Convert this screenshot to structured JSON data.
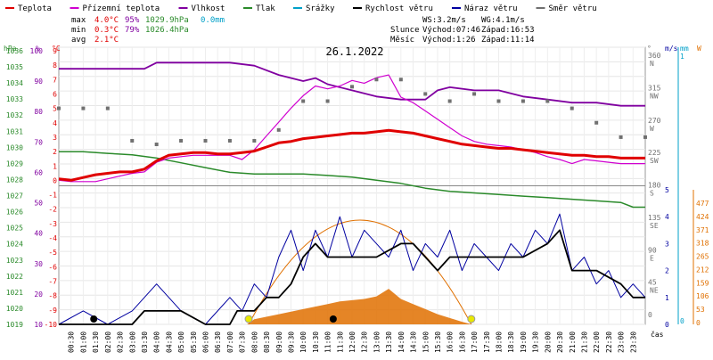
{
  "legend": [
    {
      "label": "Teplota",
      "color": "#e00000"
    },
    {
      "label": "Přízemní teplota",
      "color": "#d000d0"
    },
    {
      "label": "Vlhkost",
      "color": "#8000a0"
    },
    {
      "label": "Tlak",
      "color": "#2a8a2a"
    },
    {
      "label": "Srážky",
      "color": "#00a0c8"
    },
    {
      "label": "Rychlost větru",
      "color": "#000000"
    },
    {
      "label": "Náraz větru",
      "color": "#0000a0"
    },
    {
      "label": "Směr větru",
      "color": "#707070"
    }
  ],
  "stats": {
    "max": {
      "label": "max",
      "temp": "4.0°C",
      "hum": "95%",
      "press": "1029.9hPa",
      "rain": "0.0mm"
    },
    "min": {
      "label": "min",
      "temp": "0.3°C",
      "hum": "79%",
      "press": "1026.4hPa"
    },
    "avg": {
      "label": "avg",
      "temp": "2.1°C"
    }
  },
  "wind_info": {
    "ws": "WS:3.2m/s",
    "wg": "WG:4.1m/s"
  },
  "sun": {
    "label": "Slunce",
    "rise": "Východ:07:46",
    "set": "Západ:16:53"
  },
  "moon": {
    "label": "Měsíc",
    "rise": "Východ:1:26",
    "set": "Západ:11:14"
  },
  "title": "26.1.2022",
  "colors": {
    "temperature": "#e00000",
    "ground_temp": "#d000d0",
    "humidity": "#8000a0",
    "pressure": "#2a8a2a",
    "rain": "#00a0c8",
    "wind_speed": "#000000",
    "wind_gust": "#0000a0",
    "wind_dir": "#707070",
    "radiation": "#e07000",
    "sun_marker": "#e8e800",
    "moon_marker": "#000000"
  },
  "axes": {
    "hpa_title": "hPa",
    "percent_title": "%",
    "celsius_title": "°C",
    "hpa_ticks": [
      "1036",
      "1035",
      "1034",
      "1033",
      "1032",
      "1031",
      "1030",
      "1029",
      "1028",
      "1027",
      "1026",
      "1025",
      "1024",
      "1023",
      "1022",
      "1021",
      "1020",
      "1019"
    ],
    "percent_ticks": [
      "100",
      "90",
      "80",
      "70",
      "60",
      "50",
      "40",
      "30",
      "20",
      "10"
    ],
    "celsius_ticks": [
      "9",
      "8",
      "7",
      "6",
      "5",
      "4",
      "3",
      "2",
      "1",
      "0",
      "-1",
      "-2",
      "-3",
      "-4",
      "-5",
      "-6",
      "-7",
      "-8",
      "-9",
      "-10"
    ],
    "dir_title": "°",
    "dir_ticks": [
      "360 N",
      "315 NW",
      "270 W",
      "225 SW",
      "180 S",
      "135 SE",
      "90 E",
      "45 NE",
      "0"
    ],
    "wind_title": "m/s",
    "wind_ticks": [
      "5",
      "4",
      "3",
      "2",
      "1",
      "0"
    ],
    "rain_title": "mm",
    "rain_ticks": [
      "1",
      "0"
    ],
    "rad_title": "W",
    "rad_ticks": [
      "477",
      "424",
      "371",
      "318",
      "265",
      "212",
      "159",
      "106",
      "53",
      "0"
    ],
    "time_title": "čas",
    "time_ticks": [
      "00:30",
      "01:00",
      "01:30",
      "02:00",
      "02:30",
      "03:00",
      "03:30",
      "04:00",
      "04:30",
      "05:00",
      "05:30",
      "06:00",
      "06:30",
      "07:00",
      "07:30",
      "08:00",
      "08:30",
      "09:00",
      "09:30",
      "10:00",
      "10:30",
      "11:00",
      "11:30",
      "12:00",
      "12:30",
      "13:00",
      "13:30",
      "14:00",
      "14:30",
      "15:00",
      "15:30",
      "16:00",
      "16:30",
      "17:00",
      "17:30",
      "18:00",
      "18:30",
      "19:00",
      "19:30",
      "20:00",
      "20:30",
      "21:00",
      "21:30",
      "22:00",
      "22:30",
      "23:00",
      "23:30"
    ]
  },
  "chart_data": {
    "type": "line",
    "title": "26.1.2022",
    "x_unit": "hour",
    "xlim": [
      0,
      24
    ],
    "grid": true,
    "legend_position": "top",
    "scales": {
      "temperature_c": [
        -10,
        10
      ],
      "humidity_pct": [
        10,
        100
      ],
      "pressure_hpa": [
        1019,
        1036.5
      ],
      "wind_ms": [
        0,
        5
      ],
      "wind_dir_deg": [
        0,
        360
      ],
      "radiation_w": [
        0,
        477
      ]
    },
    "series": [
      {
        "name": "Teplota",
        "unit": "°C",
        "x": [
          0,
          0.5,
          1,
          1.5,
          2,
          2.5,
          3,
          3.5,
          4,
          4.5,
          5,
          5.5,
          6,
          6.5,
          7,
          7.5,
          8,
          8.5,
          9,
          9.5,
          10,
          10.5,
          11,
          11.5,
          12,
          12.5,
          13,
          13.5,
          14,
          14.5,
          15,
          15.5,
          16,
          16.5,
          17,
          17.5,
          18,
          18.5,
          19,
          19.5,
          20,
          20.5,
          21,
          21.5,
          22,
          22.5,
          23,
          23.5,
          24
        ],
        "y": [
          0.5,
          0.4,
          0.6,
          0.8,
          0.9,
          1.0,
          1.0,
          1.2,
          1.8,
          2.2,
          2.3,
          2.4,
          2.4,
          2.3,
          2.3,
          2.4,
          2.5,
          2.8,
          3.1,
          3.2,
          3.4,
          3.5,
          3.6,
          3.7,
          3.8,
          3.8,
          3.9,
          4.0,
          3.9,
          3.8,
          3.6,
          3.4,
          3.2,
          3.0,
          2.9,
          2.8,
          2.7,
          2.7,
          2.6,
          2.5,
          2.4,
          2.3,
          2.2,
          2.2,
          2.1,
          2.1,
          2.0,
          2.0,
          2.0
        ]
      },
      {
        "name": "Přízemní teplota",
        "unit": "°C",
        "x": [
          0,
          0.5,
          1,
          1.5,
          2,
          2.5,
          3,
          3.5,
          4,
          4.5,
          5,
          5.5,
          6,
          6.5,
          7,
          7.5,
          8,
          8.5,
          9,
          9.5,
          10,
          10.5,
          11,
          11.5,
          12,
          12.5,
          13,
          13.5,
          14,
          14.5,
          15,
          15.5,
          16,
          16.5,
          17,
          17.5,
          18,
          18.5,
          19,
          19.5,
          20,
          20.5,
          21,
          21.5,
          22,
          22.5,
          23,
          23.5,
          24
        ],
        "y": [
          0.4,
          0.3,
          0.3,
          0.3,
          0.5,
          0.7,
          0.9,
          1.0,
          1.7,
          2.0,
          2.1,
          2.2,
          2.2,
          2.2,
          2.2,
          1.9,
          2.6,
          3.6,
          4.6,
          5.6,
          6.5,
          7.2,
          7.0,
          7.2,
          7.6,
          7.4,
          7.8,
          8.0,
          6.4,
          6.0,
          5.4,
          4.8,
          4.2,
          3.6,
          3.2,
          3.0,
          2.9,
          2.8,
          2.6,
          2.4,
          2.1,
          1.9,
          1.6,
          1.9,
          1.8,
          1.7,
          1.6,
          1.6,
          1.6
        ]
      },
      {
        "name": "Vlhkost",
        "unit": "%",
        "x": [
          0,
          1,
          2,
          3,
          3.5,
          4,
          5,
          6,
          7,
          8,
          9,
          10,
          10.5,
          11,
          12,
          13,
          14,
          15,
          15.5,
          16,
          17,
          18,
          19,
          20,
          21,
          22,
          23,
          24
        ],
        "y": [
          93,
          93,
          93,
          93,
          93,
          95,
          95,
          95,
          95,
          94,
          91,
          89,
          90,
          88,
          86,
          84,
          83,
          83,
          86,
          87,
          86,
          86,
          84,
          83,
          82,
          82,
          81,
          81
        ]
      },
      {
        "name": "Tlak",
        "unit": "hPa",
        "x": [
          0,
          1,
          2,
          3,
          4,
          5,
          6,
          7,
          8,
          9,
          10,
          11,
          12,
          13,
          14,
          15,
          16,
          17,
          18,
          19,
          20,
          21,
          22,
          23,
          23.5,
          24
        ],
        "y": [
          1029.9,
          1029.9,
          1029.8,
          1029.7,
          1029.5,
          1029.2,
          1028.9,
          1028.6,
          1028.5,
          1028.5,
          1028.5,
          1028.4,
          1028.3,
          1028.1,
          1027.9,
          1027.6,
          1027.4,
          1027.3,
          1027.2,
          1027.1,
          1027.0,
          1026.9,
          1026.8,
          1026.7,
          1026.4,
          1026.4
        ]
      },
      {
        "name": "Rychlost větru",
        "unit": "m/s",
        "x": [
          0,
          2,
          3,
          3.5,
          4,
          5,
          6,
          7,
          7.3,
          8,
          8.5,
          9,
          9.5,
          10,
          10.5,
          11,
          12,
          13,
          14,
          14.5,
          15,
          15.5,
          16,
          17,
          18,
          19,
          20,
          20.5,
          21,
          22,
          23,
          23.5,
          24
        ],
        "y": [
          0,
          0,
          0,
          0.5,
          0.5,
          0.5,
          0,
          0,
          0.5,
          0.5,
          1.0,
          1.0,
          1.5,
          2.5,
          3.0,
          2.5,
          2.5,
          2.5,
          3.0,
          3.0,
          2.5,
          2.0,
          2.5,
          2.5,
          2.5,
          2.5,
          3.0,
          3.5,
          2.0,
          2.0,
          1.5,
          1.0,
          1.0
        ]
      },
      {
        "name": "Náraz větru",
        "unit": "m/s",
        "x": [
          0,
          1,
          2,
          3,
          3.5,
          4,
          4.5,
          5,
          6,
          7,
          7.5,
          8,
          8.5,
          9,
          9.5,
          10,
          10.5,
          11,
          11.5,
          12,
          12.5,
          13,
          13.5,
          14,
          14.5,
          15,
          15.5,
          16,
          16.5,
          17,
          17.5,
          18,
          18.5,
          19,
          19.5,
          20,
          20.5,
          21,
          21.5,
          22,
          22.5,
          23,
          23.5,
          24
        ],
        "y": [
          0,
          0.5,
          0,
          0.5,
          1.0,
          1.5,
          1.0,
          0.5,
          0,
          1.0,
          0.5,
          1.5,
          1.0,
          2.5,
          3.5,
          2.0,
          3.5,
          2.5,
          4.0,
          2.5,
          3.5,
          3.0,
          2.5,
          3.5,
          2.0,
          3.0,
          2.5,
          3.5,
          2.0,
          3.0,
          2.5,
          2.0,
          3.0,
          2.5,
          3.5,
          3.0,
          4.1,
          2.0,
          2.5,
          1.5,
          2.0,
          1.0,
          1.5,
          1.0
        ]
      },
      {
        "name": "Směr větru",
        "unit": "°",
        "x": [
          0,
          1,
          2,
          3,
          4,
          5,
          6,
          7,
          8,
          9,
          10,
          11,
          12,
          13,
          14,
          15,
          16,
          17,
          18,
          19,
          20,
          21,
          22,
          23,
          24
        ],
        "y": [
          290,
          290,
          290,
          245,
          240,
          245,
          245,
          245,
          245,
          260,
          300,
          300,
          320,
          330,
          330,
          310,
          300,
          310,
          300,
          300,
          300,
          290,
          270,
          250,
          250
        ]
      }
    ],
    "radiation": {
      "name": "Sluneční záření",
      "unit": "W",
      "x": [
        7.7,
        8,
        9,
        10,
        11,
        11.5,
        12,
        12.5,
        13,
        13.5,
        14,
        14.5,
        15,
        15.5,
        16,
        16.5,
        16.9
      ],
      "y": [
        0,
        20,
        40,
        60,
        80,
        90,
        95,
        100,
        110,
        140,
        100,
        80,
        60,
        40,
        25,
        10,
        0
      ]
    }
  }
}
